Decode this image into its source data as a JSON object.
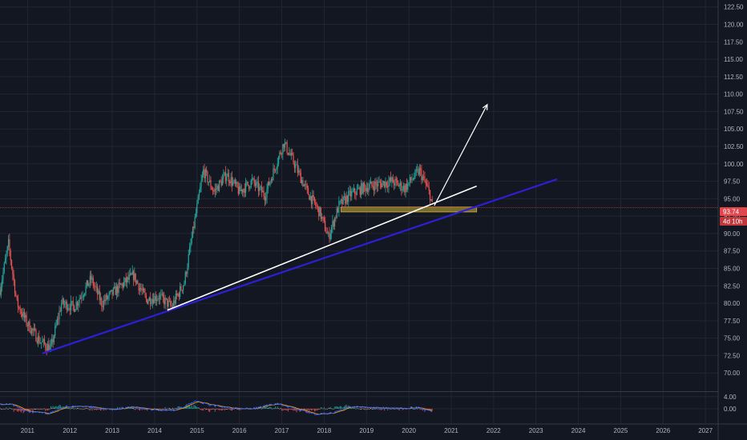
{
  "colors": {
    "background": "#131722",
    "grid": "#222631",
    "axis_text": "#b2b5be",
    "candle_up": "#26a69a",
    "candle_down": "#ef5350",
    "blue_trendline": "#2d1fd6",
    "white_trendline": "#ffffff",
    "support_zone": "#9c8a2e",
    "price_line": "#e0474c",
    "macd_line": "#2962ff",
    "signal_line": "#ff9800"
  },
  "badges": {
    "last_price": "93.74",
    "countdown": "4d 10h"
  },
  "chart_data": {
    "type": "candlestick",
    "title": "",
    "xlabel": "",
    "ylabel": "",
    "x_range": [
      2010.35,
      2027.3
    ],
    "ylim": [
      67.5,
      123.5
    ],
    "y_ticks": [
      "122.50",
      "120.00",
      "117.50",
      "115.00",
      "112.50",
      "110.00",
      "107.50",
      "105.00",
      "102.50",
      "100.00",
      "97.50",
      "95.00",
      "92.50",
      "90.00",
      "87.50",
      "85.00",
      "82.50",
      "80.00",
      "77.50",
      "75.00",
      "72.50",
      "70.00"
    ],
    "x_ticks": [
      "2011",
      "2012",
      "2013",
      "2014",
      "2015",
      "2016",
      "2017",
      "2018",
      "2019",
      "2020",
      "2021",
      "2022",
      "2023",
      "2024",
      "2025",
      "2026",
      "2027"
    ],
    "grid": true,
    "price_anchors": [
      [
        2010.35,
        82.0
      ],
      [
        2010.55,
        88.5
      ],
      [
        2010.75,
        80.0
      ],
      [
        2011.0,
        77.0
      ],
      [
        2011.3,
        74.5
      ],
      [
        2011.55,
        73.5
      ],
      [
        2011.8,
        80.0
      ],
      [
        2012.1,
        79.5
      ],
      [
        2012.5,
        83.5
      ],
      [
        2012.75,
        80.0
      ],
      [
        2013.2,
        82.5
      ],
      [
        2013.5,
        84.0
      ],
      [
        2013.8,
        80.5
      ],
      [
        2014.1,
        81.0
      ],
      [
        2014.4,
        79.5
      ],
      [
        2014.7,
        83.0
      ],
      [
        2014.95,
        92.0
      ],
      [
        2015.15,
        99.0
      ],
      [
        2015.4,
        96.0
      ],
      [
        2015.7,
        98.5
      ],
      [
        2016.0,
        96.0
      ],
      [
        2016.3,
        97.5
      ],
      [
        2016.6,
        95.5
      ],
      [
        2016.9,
        100.5
      ],
      [
        2017.05,
        103.0
      ],
      [
        2017.3,
        100.0
      ],
      [
        2017.6,
        96.0
      ],
      [
        2017.9,
        93.0
      ],
      [
        2018.1,
        89.5
      ],
      [
        2018.35,
        94.0
      ],
      [
        2018.6,
        95.5
      ],
      [
        2018.9,
        96.5
      ],
      [
        2019.2,
        97.0
      ],
      [
        2019.6,
        97.5
      ],
      [
        2019.9,
        96.5
      ],
      [
        2020.1,
        98.0
      ],
      [
        2020.25,
        99.0
      ],
      [
        2020.4,
        97.0
      ],
      [
        2020.5,
        95.5
      ],
      [
        2020.56,
        93.74
      ]
    ],
    "drawings": {
      "blue_trendline": {
        "from": [
          2011.35,
          72.8
        ],
        "to": [
          2023.5,
          97.8
        ]
      },
      "white_trendline": {
        "from": [
          2014.3,
          79.0
        ],
        "to": [
          2021.6,
          96.8
        ]
      },
      "white_arrow": {
        "from": [
          2020.6,
          94.0
        ],
        "to": [
          2021.85,
          108.5
        ]
      },
      "support_zone": {
        "x": [
          2018.4,
          2021.6
        ],
        "y": [
          93.1,
          93.8
        ]
      },
      "last_price_line": 93.74
    },
    "oscillator": {
      "type": "macd",
      "y_ticks": [
        "4.00",
        "0.00"
      ],
      "ylim": [
        -4.0,
        5.0
      ],
      "macd_anchors": [
        [
          2010.35,
          1.5
        ],
        [
          2010.6,
          1.6
        ],
        [
          2011.0,
          -1.0
        ],
        [
          2011.5,
          -1.6
        ],
        [
          2011.9,
          0.8
        ],
        [
          2012.5,
          0.6
        ],
        [
          2013.0,
          -0.3
        ],
        [
          2013.5,
          0.6
        ],
        [
          2014.0,
          -0.4
        ],
        [
          2014.5,
          -0.5
        ],
        [
          2015.0,
          2.6
        ],
        [
          2015.3,
          1.2
        ],
        [
          2015.8,
          0.2
        ],
        [
          2016.3,
          -0.1
        ],
        [
          2016.9,
          1.8
        ],
        [
          2017.2,
          0.4
        ],
        [
          2017.8,
          -1.8
        ],
        [
          2018.2,
          -1.5
        ],
        [
          2018.6,
          0.8
        ],
        [
          2019.2,
          0.3
        ],
        [
          2019.8,
          0.1
        ],
        [
          2020.2,
          0.4
        ],
        [
          2020.56,
          -1.0
        ]
      ]
    }
  }
}
